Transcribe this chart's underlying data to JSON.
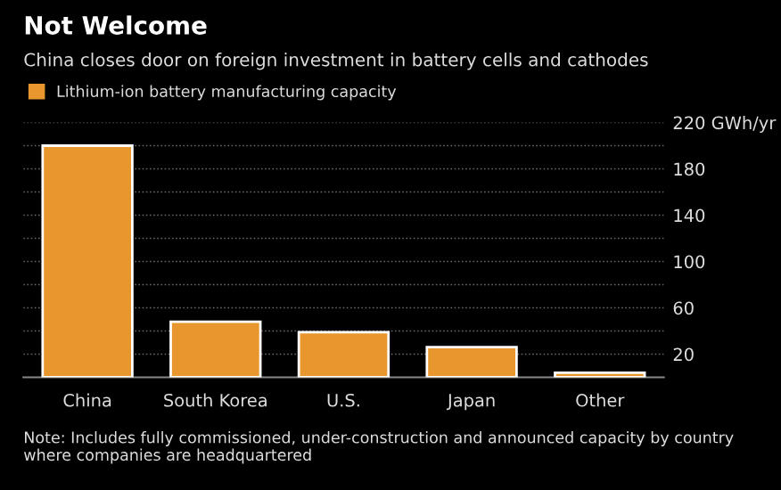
{
  "chart_data": {
    "type": "bar",
    "title": "Not Welcome",
    "subtitle": "China closes door on foreign investment in battery cells and cathodes",
    "categories": [
      "China",
      "South Korea",
      "U.S.",
      "Japan",
      "Other"
    ],
    "series": [
      {
        "name": "Lithium-ion battery manufacturing capacity",
        "color": "#e8962e",
        "values": [
          200,
          48,
          39,
          26,
          4
        ]
      }
    ],
    "ylim": [
      0,
      220
    ],
    "yticks": [
      20,
      {
        "value": 40,
        "label": null
      },
      60,
      {
        "value": 80,
        "label": null
      },
      100,
      {
        "value": 120,
        "label": null
      },
      140,
      {
        "value": 160,
        "label": null
      },
      180,
      {
        "value": 200,
        "label": null
      },
      {
        "value": 220,
        "label": "220 GWh/yr"
      }
    ],
    "grid": "y",
    "legend": "top left",
    "annotations": [
      "Note: Includes fully commissioned, under-construction and announced capacity by country where companies are headquartered"
    ]
  }
}
